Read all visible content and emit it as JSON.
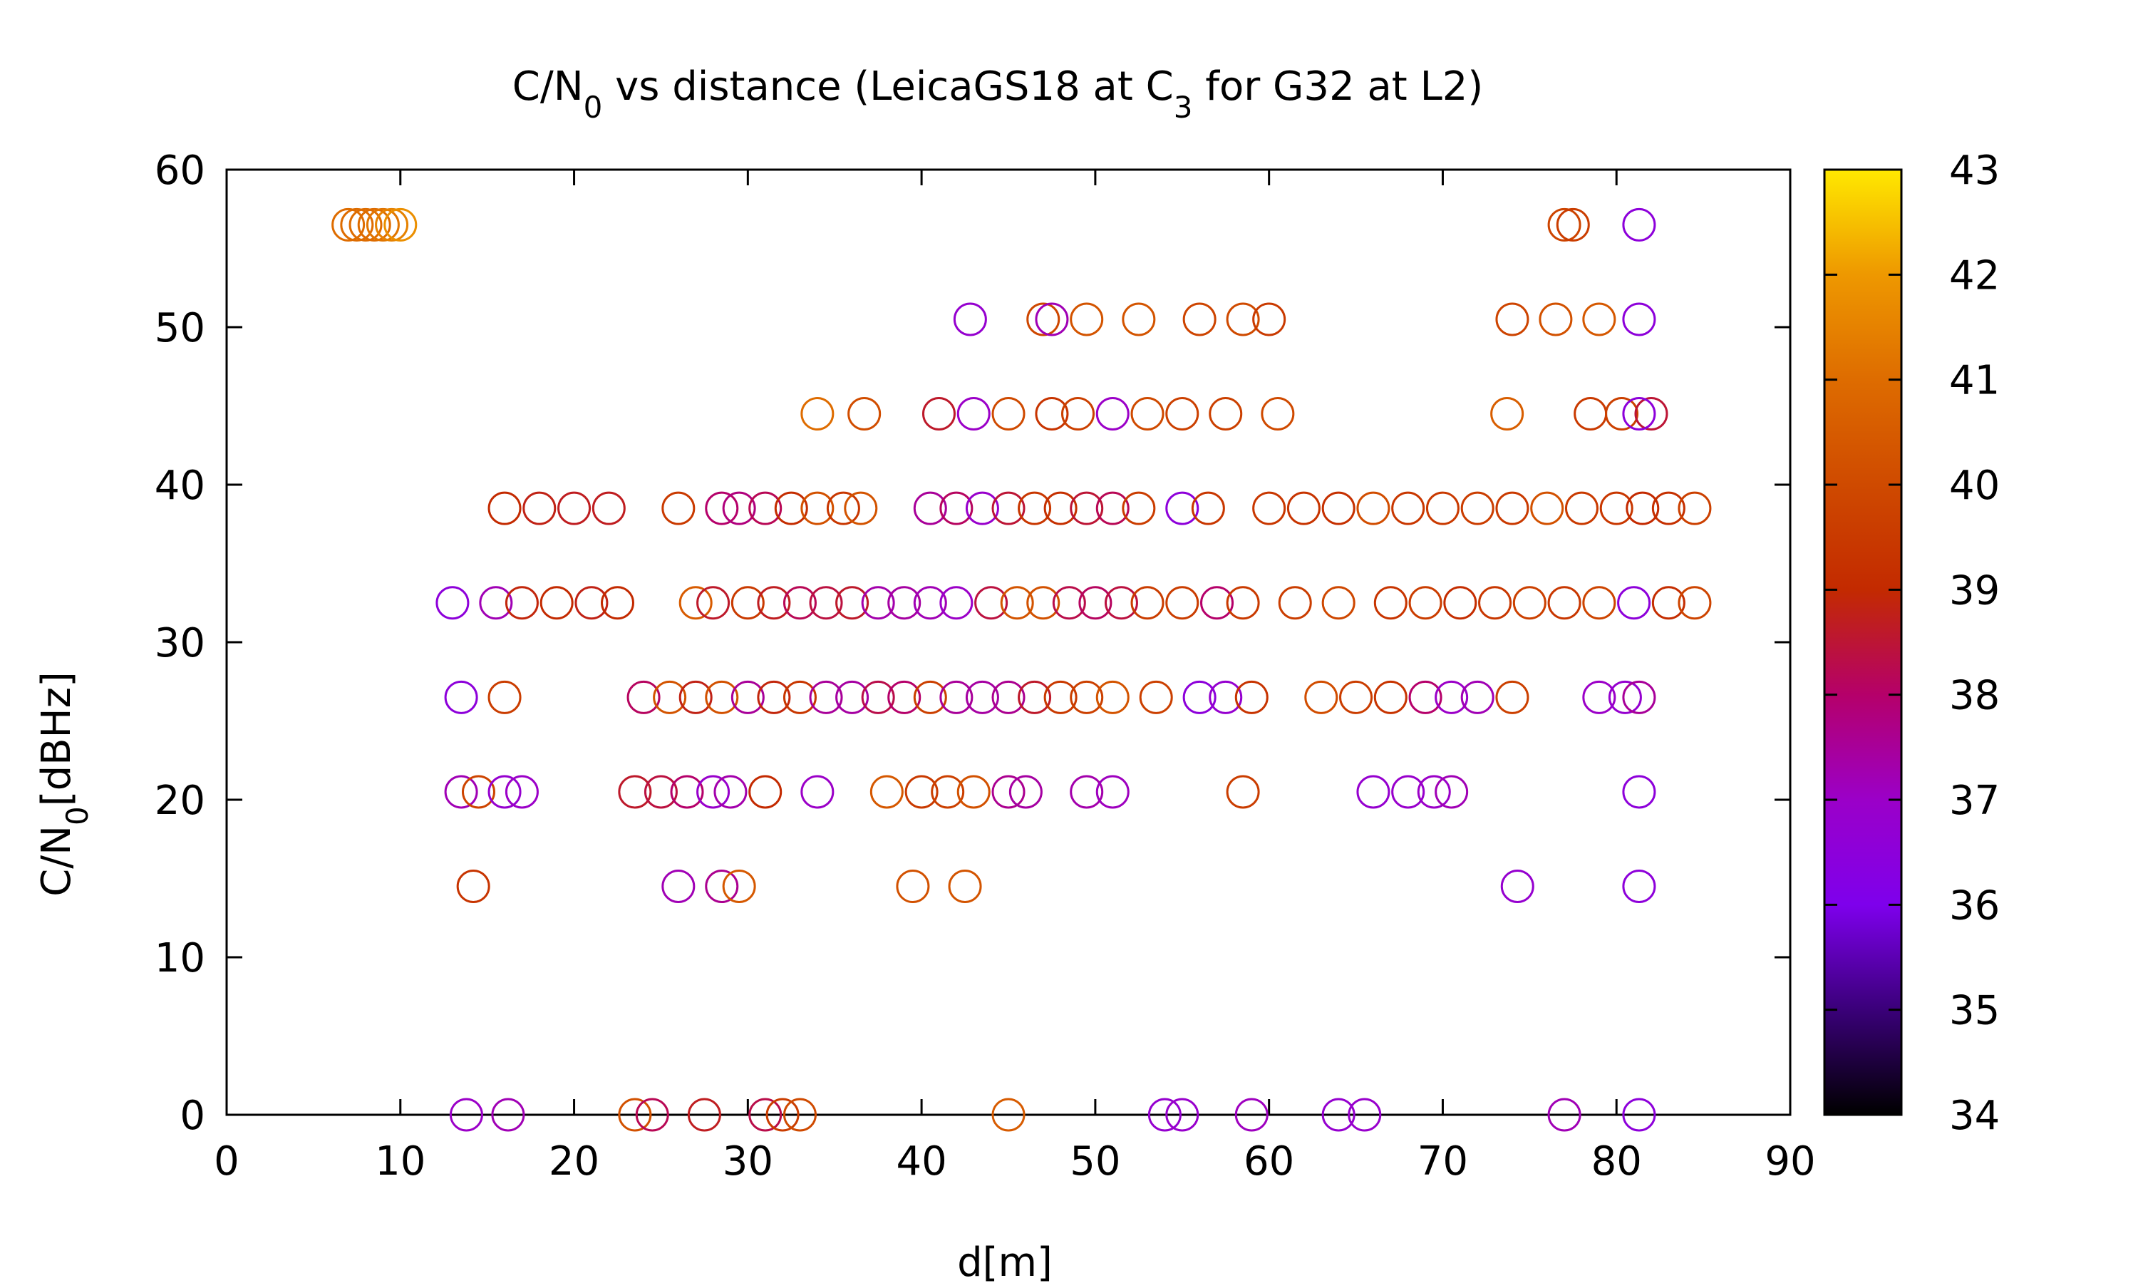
{
  "chart_data": {
    "type": "scatter",
    "title": "C/N₀ vs distance (LeicaGS18 at C₃ for G32 at L2)",
    "title_parts": [
      "C/N",
      "0",
      " vs distance (LeicaGS18 at C",
      "3",
      " for G32 at L2)"
    ],
    "xlabel": "d[m]",
    "ylabel": "C/N₀[dBHz]",
    "ylabel_parts": [
      "C/N",
      "0",
      "[dBHz]"
    ],
    "xlim": [
      0,
      90
    ],
    "ylim": [
      0,
      60
    ],
    "xticks": [
      0,
      10,
      20,
      30,
      40,
      50,
      60,
      70,
      80,
      90
    ],
    "yticks": [
      0,
      10,
      20,
      30,
      40,
      50,
      60
    ],
    "marker": "open-circle",
    "grid": false,
    "colorbar": {
      "range": [
        34,
        43
      ],
      "ticks": [
        34,
        35,
        36,
        37,
        38,
        39,
        40,
        41,
        42,
        43
      ],
      "palette": [
        "#000000",
        "#3a0079",
        "#7e00ec",
        "#9b00c8",
        "#b5006a",
        "#c32a00",
        "#cf4a00",
        "#de6c00",
        "#ee9800",
        "#ffe800"
      ]
    },
    "rows": [
      {
        "y": 56.5,
        "points": [
          [
            7,
            41
          ],
          [
            7.5,
            41
          ],
          [
            8,
            41
          ],
          [
            8.5,
            41
          ],
          [
            9,
            41.2
          ],
          [
            9.5,
            41.5
          ],
          [
            10,
            41.8
          ],
          [
            77,
            39.8
          ],
          [
            77.5,
            39.6
          ],
          [
            81.3,
            36.5
          ]
        ]
      },
      {
        "y": 50.5,
        "points": [
          [
            42.8,
            36.8
          ],
          [
            47,
            39.9
          ],
          [
            47.5,
            37.2
          ],
          [
            49.5,
            40.3
          ],
          [
            52.5,
            40.3
          ],
          [
            56,
            39.8
          ],
          [
            58.5,
            40
          ],
          [
            60,
            39.5
          ],
          [
            74,
            39.8
          ],
          [
            76.5,
            40.2
          ],
          [
            79,
            40.4
          ],
          [
            81.3,
            36.5
          ]
        ]
      },
      {
        "y": 44.5,
        "points": [
          [
            34,
            41
          ],
          [
            36.7,
            40.1
          ],
          [
            41,
            38.6
          ],
          [
            43,
            37
          ],
          [
            45,
            40
          ],
          [
            47.5,
            39.3
          ],
          [
            49,
            39.7
          ],
          [
            51,
            37
          ],
          [
            53,
            40
          ],
          [
            55,
            39.7
          ],
          [
            57.5,
            39.7
          ],
          [
            60.5,
            40
          ],
          [
            73.7,
            40.6
          ],
          [
            78.5,
            39.5
          ],
          [
            80.3,
            39.7
          ],
          [
            82,
            38.5
          ],
          [
            81.3,
            36.5
          ]
        ]
      },
      {
        "y": 38.5,
        "points": [
          [
            16,
            39
          ],
          [
            18,
            38.8
          ],
          [
            20,
            38.7
          ],
          [
            22,
            38.7
          ],
          [
            26,
            39.5
          ],
          [
            28.5,
            38
          ],
          [
            29.5,
            37.8
          ],
          [
            31,
            38.2
          ],
          [
            32.5,
            39.1
          ],
          [
            34,
            40.2
          ],
          [
            35.5,
            39.4
          ],
          [
            36.5,
            40.3
          ],
          [
            40.5,
            37.5
          ],
          [
            42,
            38.1
          ],
          [
            43.5,
            36.9
          ],
          [
            45,
            38.5
          ],
          [
            46.5,
            39.4
          ],
          [
            48,
            39.2
          ],
          [
            49.5,
            38.5
          ],
          [
            51,
            38.2
          ],
          [
            52.5,
            39.6
          ],
          [
            55,
            36.5
          ],
          [
            56.5,
            39.4
          ],
          [
            60,
            39.4
          ],
          [
            62,
            39.3
          ],
          [
            64,
            39.2
          ],
          [
            66,
            40.1
          ],
          [
            68,
            39.4
          ],
          [
            70,
            39.5
          ],
          [
            72,
            39.6
          ],
          [
            74,
            39.5
          ],
          [
            76,
            40.2
          ],
          [
            78,
            39.5
          ],
          [
            80,
            39.4
          ],
          [
            81.5,
            39
          ],
          [
            83,
            39.2
          ],
          [
            84.5,
            39.7
          ]
        ]
      },
      {
        "y": 32.5,
        "points": [
          [
            13,
            36.5
          ],
          [
            15.5,
            37.2
          ],
          [
            17,
            38.9
          ],
          [
            19,
            39
          ],
          [
            21,
            38.8
          ],
          [
            22.5,
            39
          ],
          [
            27,
            40.5
          ],
          [
            28,
            38.6
          ],
          [
            30,
            39.5
          ],
          [
            31.5,
            38.7
          ],
          [
            33,
            38.2
          ],
          [
            34.5,
            38.4
          ],
          [
            36,
            38.6
          ],
          [
            37.5,
            37.3
          ],
          [
            39,
            37.4
          ],
          [
            40.5,
            37.2
          ],
          [
            42,
            37
          ],
          [
            44,
            38.4
          ],
          [
            45.5,
            40.3
          ],
          [
            47,
            40.2
          ],
          [
            48.5,
            38.3
          ],
          [
            50,
            38.1
          ],
          [
            51.5,
            38.4
          ],
          [
            53,
            39.6
          ],
          [
            55,
            39.6
          ],
          [
            57,
            38
          ],
          [
            58.5,
            39.5
          ],
          [
            61.5,
            39.6
          ],
          [
            64,
            39.9
          ],
          [
            67,
            39.3
          ],
          [
            69,
            39.6
          ],
          [
            71,
            39.1
          ],
          [
            73,
            39.4
          ],
          [
            75,
            39.7
          ],
          [
            77,
            39.4
          ],
          [
            79,
            39.8
          ],
          [
            81,
            36.5
          ],
          [
            83,
            39.1
          ],
          [
            84.5,
            39.8
          ]
        ]
      },
      {
        "y": 26.5,
        "points": [
          [
            13.5,
            36.5
          ],
          [
            16,
            39.6
          ],
          [
            24,
            38.1
          ],
          [
            25.5,
            40.3
          ],
          [
            27,
            38.8
          ],
          [
            28.5,
            40.2
          ],
          [
            30,
            37.5
          ],
          [
            31.5,
            38.9
          ],
          [
            33,
            39.4
          ],
          [
            34.5,
            37.5
          ],
          [
            36,
            37.4
          ],
          [
            37.5,
            38.3
          ],
          [
            39,
            38
          ],
          [
            40.5,
            39.7
          ],
          [
            42,
            37.5
          ],
          [
            43.5,
            37.4
          ],
          [
            45,
            37.6
          ],
          [
            46.5,
            38.6
          ],
          [
            48,
            39.5
          ],
          [
            49.5,
            39.7
          ],
          [
            51,
            40.3
          ],
          [
            53.5,
            39.7
          ],
          [
            56,
            36.5
          ],
          [
            57.5,
            36.8
          ],
          [
            59,
            39.3
          ],
          [
            63,
            40.1
          ],
          [
            65,
            39.6
          ],
          [
            67,
            39.3
          ],
          [
            69,
            38
          ],
          [
            70.5,
            37
          ],
          [
            72,
            37.2
          ],
          [
            74,
            39.7
          ],
          [
            79,
            37
          ],
          [
            80.5,
            36.8
          ],
          [
            81.3,
            37.5
          ]
        ]
      },
      {
        "y": 20.5,
        "points": [
          [
            13.5,
            37.2
          ],
          [
            14.5,
            39.8
          ],
          [
            16,
            36.8
          ],
          [
            17,
            37
          ],
          [
            23.5,
            38.6
          ],
          [
            25,
            38.4
          ],
          [
            26.5,
            38
          ],
          [
            28,
            36.9
          ],
          [
            29,
            37.3
          ],
          [
            31,
            39
          ],
          [
            34,
            37
          ],
          [
            38,
            40.4
          ],
          [
            40,
            39.5
          ],
          [
            41.5,
            39.7
          ],
          [
            43,
            40.2
          ],
          [
            45,
            37.6
          ],
          [
            46,
            37.4
          ],
          [
            49.5,
            37.3
          ],
          [
            51,
            37.1
          ],
          [
            58.5,
            39.6
          ],
          [
            66,
            36.8
          ],
          [
            68,
            36.9
          ],
          [
            69.5,
            37
          ],
          [
            70.5,
            37.2
          ],
          [
            81.3,
            36.5
          ]
        ]
      },
      {
        "y": 14.5,
        "points": [
          [
            14.2,
            39.3
          ],
          [
            26,
            37.2
          ],
          [
            28.5,
            37.6
          ],
          [
            29.5,
            40.4
          ],
          [
            39.5,
            40.2
          ],
          [
            42.5,
            40.3
          ],
          [
            74.3,
            36.8
          ],
          [
            81.3,
            36.5
          ]
        ]
      },
      {
        "y": 0,
        "points": [
          [
            13.8,
            37
          ],
          [
            16.2,
            37.2
          ],
          [
            23.5,
            40.2
          ],
          [
            24.5,
            38.2
          ],
          [
            27.5,
            38.7
          ],
          [
            31,
            38.3
          ],
          [
            32,
            39.6
          ],
          [
            33,
            40
          ],
          [
            45,
            40.5
          ],
          [
            54,
            36.8
          ],
          [
            55,
            36.9
          ],
          [
            59,
            37.1
          ],
          [
            64,
            36.8
          ],
          [
            65.5,
            36.9
          ],
          [
            77,
            37.2
          ],
          [
            81.3,
            36.5
          ]
        ]
      }
    ]
  }
}
